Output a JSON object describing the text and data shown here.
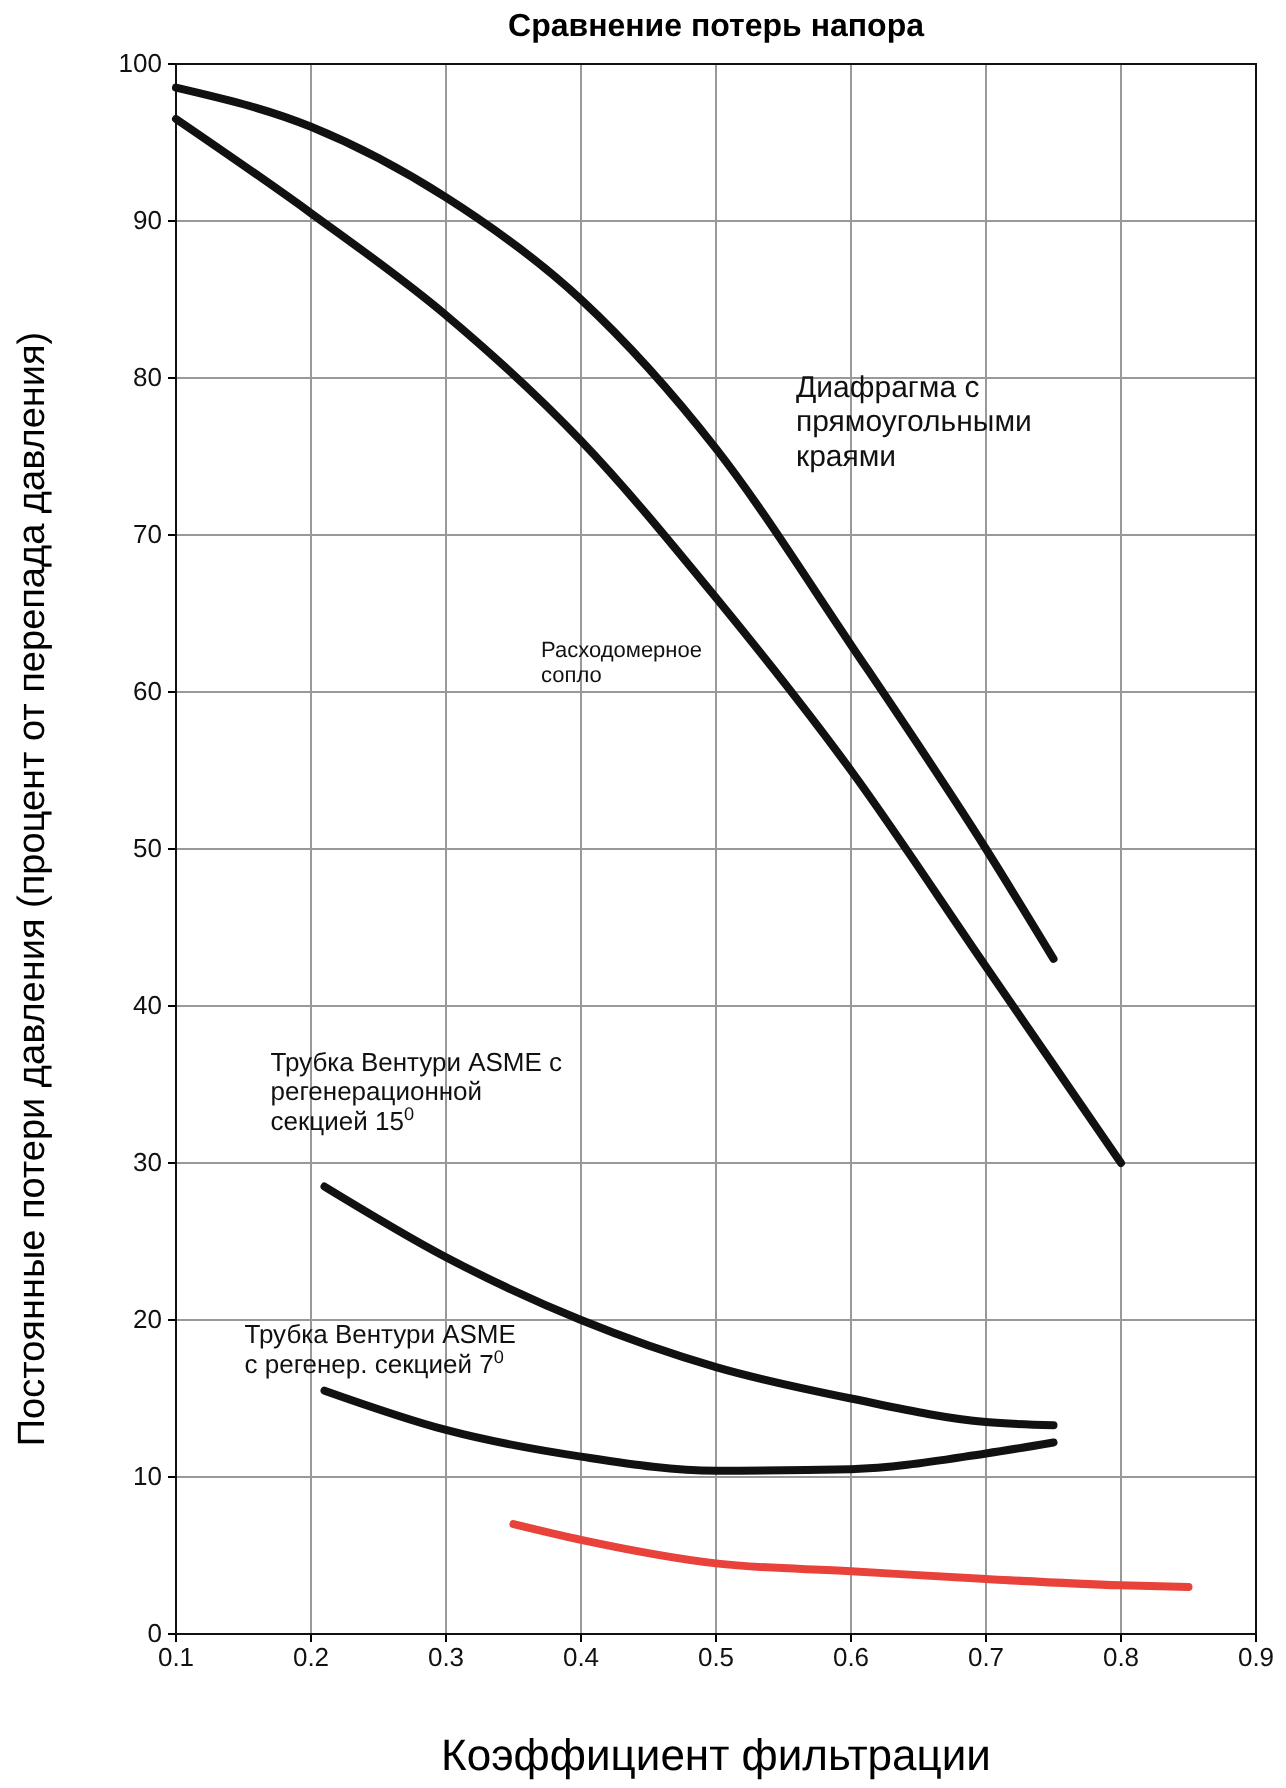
{
  "chart_data": {
    "type": "line",
    "title": "Сравнение потерь напора",
    "xlabel": "Коэффициент фильтрации",
    "ylabel": "Постоянные потери давления (процент от перепада давления)",
    "xlim": [
      0.1,
      0.9
    ],
    "xticks": [
      0.1,
      0.2,
      0.3,
      0.4,
      0.5,
      0.6,
      0.7,
      0.8,
      0.9
    ],
    "ylim": [
      0,
      100
    ],
    "yticks": [
      0,
      10,
      20,
      30,
      40,
      50,
      60,
      70,
      80,
      90,
      100
    ],
    "grid": true,
    "line_style": "solid",
    "marker": "none",
    "series": [
      {
        "name": "Диафрагма с\nпрямоугольными\nкраями",
        "color": "#111111",
        "x": [
          0.1,
          0.2,
          0.3,
          0.4,
          0.5,
          0.6,
          0.7,
          0.75
        ],
        "values": [
          98.5,
          96,
          91.5,
          85,
          75.5,
          63,
          50,
          43
        ]
      },
      {
        "name": "Расходомерное\nсопло",
        "color": "#111111",
        "x": [
          0.1,
          0.2,
          0.3,
          0.4,
          0.5,
          0.6,
          0.7,
          0.8
        ],
        "values": [
          96.5,
          90.5,
          84,
          76,
          66,
          55,
          42.5,
          30
        ]
      },
      {
        "name": "Трубка Вентури ASME с\nрегенерационной\nсекцией 15$^{0}$",
        "color": "#111111",
        "x": [
          0.21,
          0.3,
          0.4,
          0.5,
          0.6,
          0.7,
          0.75
        ],
        "values": [
          28.5,
          24,
          20,
          17,
          15,
          13.5,
          13.3
        ]
      },
      {
        "name": "Трубка Вентури ASME\nс регенер. секцией 7$^{0}$",
        "color": "#111111",
        "x": [
          0.21,
          0.3,
          0.4,
          0.5,
          0.6,
          0.7,
          0.75
        ],
        "values": [
          15.5,
          13,
          11.3,
          10.4,
          10.5,
          11.5,
          12.2
        ]
      },
      {
        "color": "#e8423b",
        "x": [
          0.35,
          0.4,
          0.5,
          0.6,
          0.7,
          0.8,
          0.85
        ],
        "values": [
          7,
          6,
          4.5,
          4,
          3.5,
          3.1,
          3
        ]
      }
    ]
  }
}
